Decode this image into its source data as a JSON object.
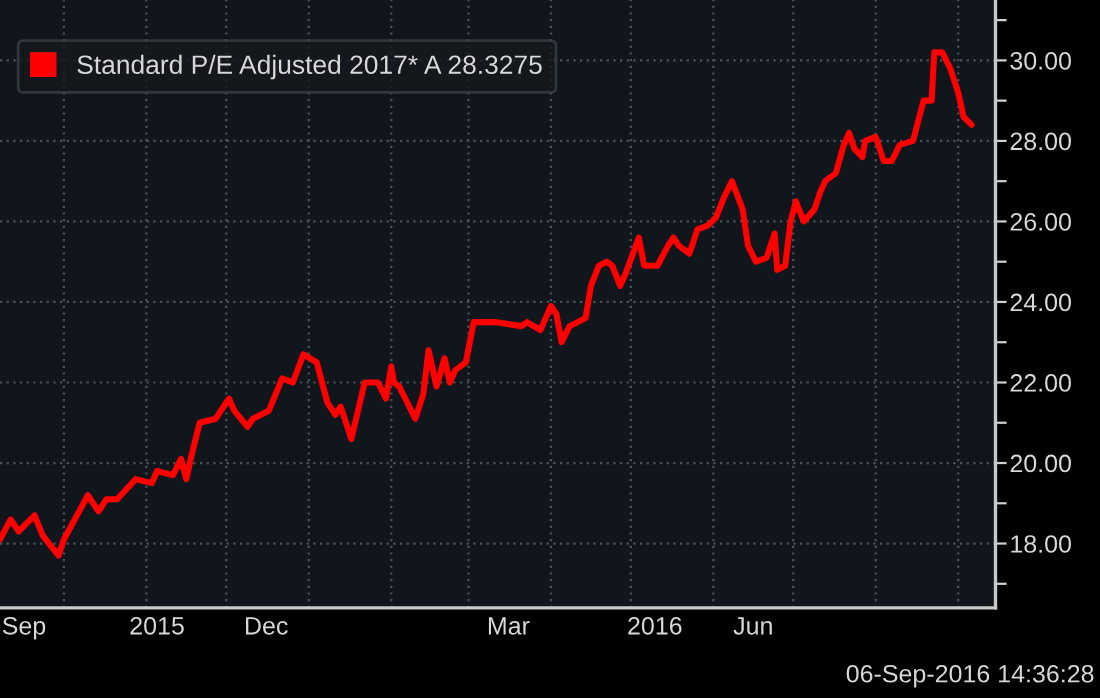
{
  "chart_data": {
    "type": "line",
    "x": [
      "2015-09-07",
      "2015-09-11",
      "2015-09-14",
      "2015-09-20",
      "2015-09-23",
      "2015-09-29",
      "2015-10-01",
      "2015-10-10",
      "2015-10-14",
      "2015-10-17",
      "2015-10-21",
      "2015-10-28",
      "2015-11-03",
      "2015-11-05",
      "2015-11-11",
      "2015-11-14",
      "2015-11-16",
      "2015-11-18",
      "2015-11-21",
      "2015-11-27",
      "2015-12-02",
      "2015-12-04",
      "2015-12-09",
      "2015-12-11",
      "2015-12-17",
      "2015-12-22",
      "2015-12-26",
      "2015-12-30",
      "2016-01-04",
      "2016-01-08",
      "2016-01-11",
      "2016-01-13",
      "2016-01-17",
      "2016-01-22",
      "2016-01-27",
      "2016-01-30",
      "2016-02-01",
      "2016-02-02",
      "2016-02-04",
      "2016-02-10",
      "2016-02-13",
      "2016-02-15",
      "2016-02-18",
      "2016-02-21",
      "2016-02-23",
      "2016-02-25",
      "2016-02-29",
      "2016-03-03",
      "2016-03-11",
      "2016-03-21",
      "2016-03-23",
      "2016-03-28",
      "2016-04-01",
      "2016-04-03",
      "2016-04-05",
      "2016-04-08",
      "2016-04-14",
      "2016-04-16",
      "2016-04-19",
      "2016-04-22",
      "2016-04-24",
      "2016-04-27",
      "2016-04-29",
      "2016-05-04",
      "2016-05-06",
      "2016-05-11",
      "2016-05-15",
      "2016-05-17",
      "2016-05-19",
      "2016-05-23",
      "2016-05-26",
      "2016-05-30",
      "2016-06-02",
      "2016-06-05",
      "2016-06-08",
      "2016-06-12",
      "2016-06-14",
      "2016-06-17",
      "2016-06-21",
      "2016-06-24",
      "2016-06-25",
      "2016-06-28",
      "2016-06-30",
      "2016-07-02",
      "2016-07-05",
      "2016-07-09",
      "2016-07-11",
      "2016-07-13",
      "2016-07-17",
      "2016-07-20",
      "2016-07-22",
      "2016-07-24",
      "2016-07-27",
      "2016-07-28",
      "2016-08-01",
      "2016-08-04",
      "2016-08-07",
      "2016-08-10",
      "2016-08-15",
      "2016-08-17",
      "2016-08-19",
      "2016-08-22",
      "2016-08-23",
      "2016-08-26",
      "2016-08-29",
      "2016-09-01",
      "2016-09-03",
      "2016-09-06"
    ],
    "series": [
      {
        "name": "Standard P/E Adjusted 2017* A 28.3275",
        "color": "#ff0000",
        "values": [
          18.1,
          18.6,
          18.3,
          18.7,
          18.2,
          17.7,
          18.1,
          19.2,
          18.8,
          19.1,
          19.1,
          19.6,
          19.5,
          19.8,
          19.7,
          20.1,
          19.6,
          20.2,
          21.0,
          21.1,
          21.6,
          21.3,
          20.9,
          21.1,
          21.3,
          22.1,
          22.0,
          22.7,
          22.5,
          21.5,
          21.2,
          21.4,
          20.6,
          22.0,
          22.0,
          21.6,
          22.4,
          22.0,
          21.9,
          21.1,
          21.7,
          22.8,
          21.9,
          22.6,
          22.0,
          22.3,
          22.5,
          23.5,
          23.5,
          23.4,
          23.5,
          23.3,
          23.9,
          23.7,
          23.0,
          23.4,
          23.6,
          24.4,
          24.9,
          25.0,
          24.9,
          24.4,
          24.7,
          25.6,
          24.9,
          24.9,
          25.4,
          25.6,
          25.4,
          25.2,
          25.8,
          25.9,
          26.1,
          26.6,
          27.0,
          26.3,
          25.4,
          25.0,
          25.1,
          25.7,
          24.8,
          24.9,
          26.0,
          26.5,
          26.0,
          26.3,
          26.7,
          27.0,
          27.2,
          27.9,
          28.2,
          27.8,
          27.6,
          28.0,
          28.1,
          27.5,
          27.5,
          27.9,
          28.0,
          28.5,
          29.0,
          29.0,
          30.2,
          30.2,
          29.8,
          29.2,
          28.6,
          28.4
        ]
      }
    ],
    "xlim": [
      "2015-09-07",
      "2016-09-15"
    ],
    "xticks": [
      {
        "value": "2015-09-16",
        "label": "Sep"
      },
      {
        "value": "2015-10-01",
        "label": null
      },
      {
        "value": "2015-11-01",
        "label": null
      },
      {
        "value": "2015-11-05",
        "label": "2015"
      },
      {
        "value": "2015-12-01",
        "label": null
      },
      {
        "value": "2015-12-16",
        "label": "Dec"
      },
      {
        "value": "2016-01-01",
        "label": null
      },
      {
        "value": "2016-02-01",
        "label": null
      },
      {
        "value": "2016-03-01",
        "label": null
      },
      {
        "value": "2016-03-16",
        "label": "Mar"
      },
      {
        "value": "2016-04-01",
        "label": null
      },
      {
        "value": "2016-05-01",
        "label": null
      },
      {
        "value": "2016-05-10",
        "label": "2016"
      },
      {
        "value": "2016-06-01",
        "label": null
      },
      {
        "value": "2016-06-16",
        "label": "Jun"
      },
      {
        "value": "2016-07-01",
        "label": null
      },
      {
        "value": "2016-08-01",
        "label": null
      },
      {
        "value": "2016-09-01",
        "label": null
      }
    ],
    "ylim": [
      16.4,
      31.5
    ],
    "yticks": [
      {
        "value": 17,
        "label": null
      },
      {
        "value": 18,
        "label": "18.00"
      },
      {
        "value": 19,
        "label": null
      },
      {
        "value": 20,
        "label": "20.00"
      },
      {
        "value": 21,
        "label": null
      },
      {
        "value": 22,
        "label": "22.00"
      },
      {
        "value": 23,
        "label": null
      },
      {
        "value": 24,
        "label": "24.00"
      },
      {
        "value": 25,
        "label": null
      },
      {
        "value": 26,
        "label": "26.00"
      },
      {
        "value": 27,
        "label": null
      },
      {
        "value": 28,
        "label": "28.00"
      },
      {
        "value": 29,
        "label": null
      },
      {
        "value": 30,
        "label": "30.00"
      },
      {
        "value": 31,
        "label": null
      }
    ],
    "annotations": [
      "06-Sep-2016 14:36:28"
    ],
    "grid": true,
    "legend": "top left",
    "marker": "none",
    "line_style": "solid"
  }
}
